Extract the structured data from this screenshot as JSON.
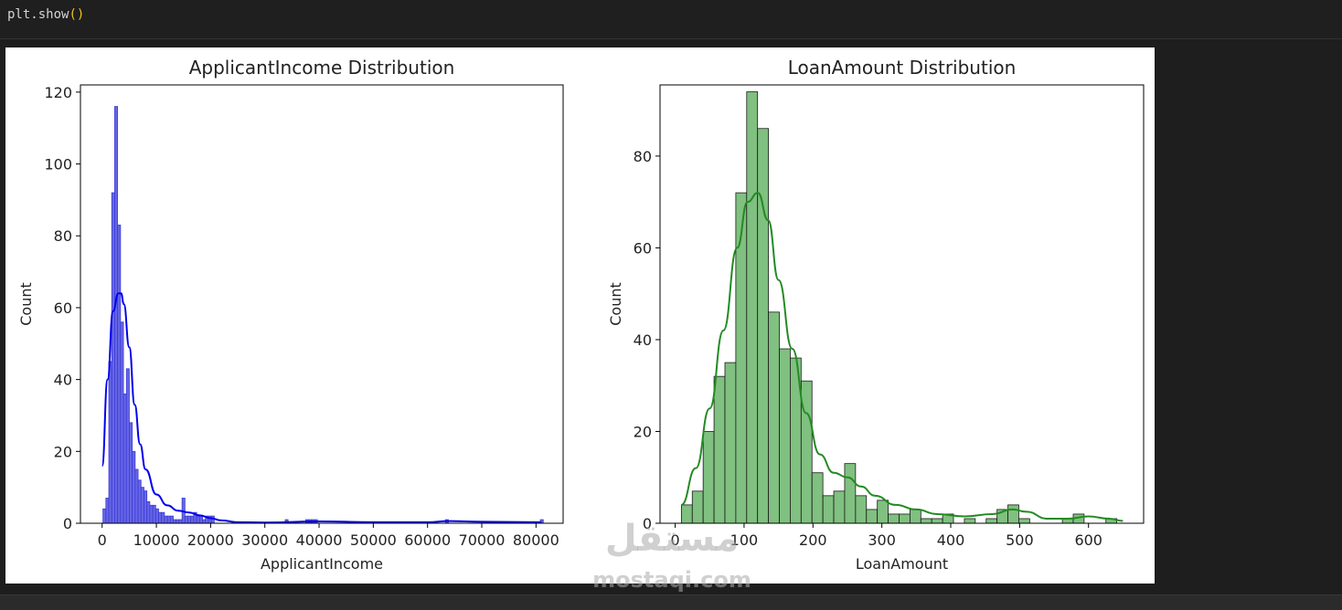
{
  "code": {
    "text": "plt.show",
    "parens": "()"
  },
  "watermark": {
    "brand": "مستقل",
    "domain": "mostaqi.com"
  },
  "chart_data": [
    {
      "type": "bar",
      "title": "ApplicantIncome Distribution",
      "xlabel": "ApplicantIncome",
      "ylabel": "Count",
      "xlim": [
        -4000,
        85000
      ],
      "ylim": [
        0,
        122
      ],
      "xticks": [
        0,
        10000,
        20000,
        30000,
        40000,
        50000,
        60000,
        70000,
        80000
      ],
      "yticks": [
        0,
        20,
        40,
        60,
        80,
        100,
        120
      ],
      "bin_width": 540,
      "bin_starts": [
        150,
        690,
        1230,
        1770,
        2310,
        2850,
        3390,
        3930,
        4470,
        5010,
        5550,
        6090,
        6630,
        7170,
        7710,
        8250,
        8790,
        9330,
        9870,
        10410,
        10950,
        11490,
        12030,
        12570,
        13110,
        13650,
        14190,
        14730,
        15270,
        15810,
        16350,
        16890,
        17430,
        17970,
        18510,
        19050,
        19590,
        20130,
        33750,
        37530,
        38070,
        38610,
        39150,
        63300,
        80800
      ],
      "values": [
        4,
        7,
        45,
        92,
        116,
        83,
        56,
        36,
        43,
        28,
        20,
        15,
        12,
        10,
        9,
        6,
        5,
        5,
        4,
        3,
        3,
        2,
        2,
        2,
        1,
        1,
        1,
        7,
        2,
        2,
        2,
        3,
        2,
        2,
        1,
        2,
        2,
        2,
        1,
        1,
        1,
        1,
        1,
        1,
        1
      ],
      "kde": {
        "x": [
          0,
          1000,
          2000,
          3000,
          3500,
          4000,
          5000,
          6000,
          7000,
          8000,
          10000,
          12000,
          14000,
          16000,
          18000,
          20000,
          22000,
          25000,
          30000,
          40000,
          50000,
          60000,
          64000,
          70000,
          80000,
          81000
        ],
        "y": [
          16,
          40,
          59,
          64,
          64,
          61,
          49,
          33,
          22,
          15,
          8,
          5,
          3.5,
          3,
          2.2,
          1.4,
          0.8,
          0.3,
          0.2,
          0.5,
          0.3,
          0.3,
          0.6,
          0.4,
          0.3,
          0.3
        ]
      },
      "colors": {
        "bar_fill": "#6666e6",
        "bar_edge": "#3b3bd6",
        "kde": "#0000ee"
      }
    },
    {
      "type": "bar",
      "title": "LoanAmount Distribution",
      "xlabel": "LoanAmount",
      "ylabel": "Count",
      "xlim": [
        -22,
        680
      ],
      "ylim": [
        0,
        95.5
      ],
      "xticks": [
        0,
        100,
        200,
        300,
        400,
        500,
        600
      ],
      "yticks": [
        0,
        20,
        40,
        60,
        80
      ],
      "bin_width": 15.8,
      "bin_starts": [
        9,
        24.8,
        40.6,
        56.4,
        72.2,
        88,
        103.8,
        119.6,
        135.4,
        151.2,
        167,
        182.8,
        198.6,
        214.4,
        230.2,
        246,
        261.8,
        277.6,
        293.4,
        309.2,
        325,
        340.8,
        356.6,
        372.4,
        388.2,
        404,
        419.8,
        435.6,
        451.4,
        467.2,
        483,
        498.8,
        514.6,
        530.4,
        546.2,
        562,
        577.8,
        593.6,
        609.4,
        625.2
      ],
      "values": [
        4,
        7,
        20,
        32,
        35,
        72,
        94,
        86,
        46,
        38,
        36,
        31,
        11,
        6,
        7,
        13,
        6,
        3,
        5,
        2,
        2,
        3,
        1,
        1,
        2,
        0,
        1,
        0,
        1,
        3,
        4,
        1,
        0,
        0,
        0,
        1,
        2,
        0,
        0,
        1
      ],
      "kde": {
        "x": [
          9,
          30,
          50,
          70,
          90,
          105,
          120,
          135,
          150,
          170,
          190,
          210,
          230,
          250,
          270,
          290,
          320,
          350,
          380,
          420,
          460,
          490,
          510,
          540,
          570,
          600,
          630,
          650
        ],
        "y": [
          4,
          12,
          25,
          42,
          60,
          70,
          72,
          66,
          53,
          38,
          24,
          15,
          11,
          10,
          8,
          6,
          4,
          3,
          2,
          1.5,
          2,
          3,
          2.5,
          1,
          1,
          1.5,
          1,
          0.5
        ]
      },
      "colors": {
        "bar_fill": "#80c080",
        "bar_edge": "#1a1a1a",
        "kde": "#228b22"
      }
    }
  ]
}
